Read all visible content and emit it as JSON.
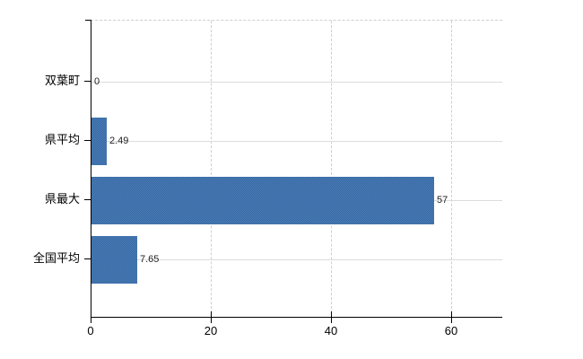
{
  "chart_data": {
    "type": "bar",
    "orientation": "horizontal",
    "title": "",
    "xlabel": "",
    "ylabel": "",
    "categories": [
      "双葉町",
      "県平均",
      "県最大",
      "全国平均"
    ],
    "values": [
      0,
      2.49,
      57,
      7.65
    ],
    "value_labels": [
      "0",
      "2.49",
      "57",
      "7.65"
    ],
    "x_ticks": [
      0,
      20,
      40,
      60
    ],
    "x_tick_labels": [
      "0",
      "20",
      "40",
      "60"
    ],
    "xlim": [
      0,
      68.5
    ],
    "grid": {
      "horizontal_solid": true,
      "vertical_dashed": true,
      "top_border_dashed": true
    },
    "legend": null,
    "colors": {
      "bar": "#3e6fa8",
      "bar_dither_light": "#4c7db9",
      "bar_dither_dark": "#35679f",
      "gridline_horizontal": "#d9ded9",
      "gridline_dashed": "#d2ccd2",
      "axis": "#000000",
      "text": "#000000",
      "value_text": "#222222",
      "background": "#ffffff"
    }
  }
}
